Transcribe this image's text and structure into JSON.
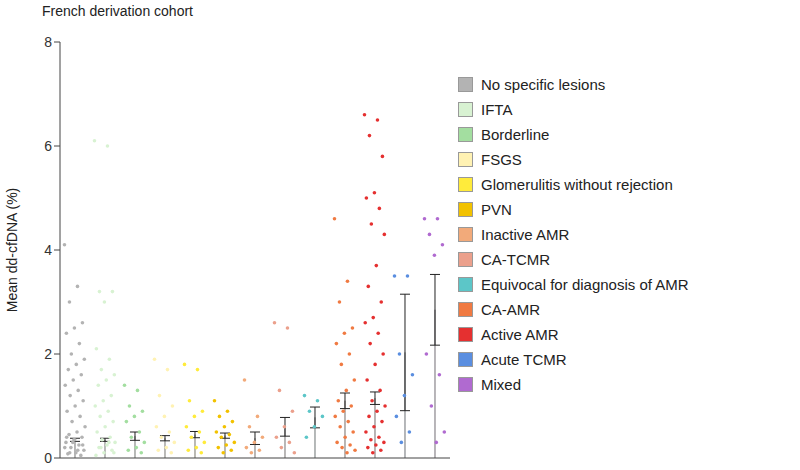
{
  "chart_data": {
    "type": "bar",
    "title": "French derivation cohort",
    "y_label": "Mean dd-cfDNA (%)",
    "categories": [
      "No specific lesions",
      "IFTA",
      "Borderline",
      "FSGS",
      "Glomerulitis without rejection",
      "PVN",
      "Inactive AMR",
      "CA-TCMR",
      "Equivocal for diagnosis of AMR",
      "CA-AMR",
      "Active AMR",
      "Acute TCMR",
      "Mixed"
    ],
    "values": [
      0.35,
      0.35,
      0.42,
      0.38,
      0.45,
      0.43,
      0.38,
      0.6,
      0.78,
      1.1,
      1.15,
      2.03,
      2.85
    ],
    "errors": [
      0.03,
      0.03,
      0.08,
      0.05,
      0.06,
      0.05,
      0.12,
      0.18,
      0.2,
      0.15,
      0.12,
      1.12,
      0.68
    ],
    "colors": [
      "#b3b3b3",
      "#d8f2d2",
      "#a3dea0",
      "#fff2b3",
      "#ffeb3b",
      "#f2c200",
      "#f2aa7a",
      "#eba08c",
      "#5cc6c8",
      "#f07a42",
      "#e53030",
      "#5a8ee0",
      "#b06ad0"
    ],
    "points": [
      [
        4.1,
        3.3,
        3.0,
        2.6,
        2.5,
        2.4,
        2.2,
        2.0,
        1.9,
        1.8,
        1.7,
        1.6,
        1.5,
        1.4,
        1.3,
        1.2,
        1.1,
        1.0,
        0.9,
        0.8,
        0.7,
        0.6,
        0.5,
        0.45,
        0.4,
        0.35,
        0.3,
        0.25,
        0.2,
        0.15,
        0.1,
        0.08,
        0.05,
        0.3,
        0.2,
        0.15,
        0.1,
        0.25,
        0.35,
        0.4
      ],
      [
        6.1,
        6.0,
        3.2,
        3.2,
        3.0,
        2.1,
        1.9,
        1.7,
        1.6,
        1.5,
        1.4,
        1.2,
        1.1,
        1.0,
        0.9,
        0.8,
        0.7,
        0.6,
        0.5,
        0.4,
        0.35,
        0.3,
        0.25,
        0.2,
        0.15,
        0.1,
        0.05,
        0.3,
        0.2,
        0.1
      ],
      [
        1.4,
        1.3,
        1.0,
        0.9,
        0.8,
        0.7,
        0.5,
        0.4,
        0.3,
        0.2,
        0.15,
        0.1
      ],
      [
        1.9,
        1.7,
        1.2,
        1.0,
        0.8,
        0.6,
        0.5,
        0.4,
        0.3,
        0.2,
        0.15,
        0.1
      ],
      [
        1.8,
        1.7,
        1.1,
        0.9,
        0.8,
        0.6,
        0.5,
        0.4,
        0.3,
        0.2,
        0.15,
        0.1
      ],
      [
        1.1,
        0.9,
        0.8,
        0.7,
        0.6,
        0.5,
        0.45,
        0.4,
        0.3,
        0.25,
        0.2,
        0.15,
        0.1
      ],
      [
        1.5,
        0.8,
        0.6,
        0.4,
        0.3,
        0.2,
        0.15,
        0.1
      ],
      [
        2.6,
        2.5,
        1.3,
        0.9,
        0.6,
        0.4,
        0.3,
        0.2,
        0.1
      ],
      [
        1.2,
        1.1,
        0.9,
        0.8,
        0.6,
        0.4
      ],
      [
        4.6,
        3.4,
        3.0,
        2.5,
        2.4,
        2.2,
        2.0,
        1.8,
        1.5,
        1.3,
        1.1,
        1.0,
        0.9,
        0.8,
        0.7,
        0.6,
        0.5,
        0.4,
        0.3,
        0.25,
        0.2,
        0.15,
        0.1
      ],
      [
        6.6,
        6.5,
        6.2,
        5.8,
        5.1,
        5.0,
        4.8,
        4.5,
        4.3,
        3.7,
        3.3,
        3.0,
        2.7,
        2.6,
        2.4,
        2.2,
        2.0,
        1.8,
        1.5,
        1.3,
        1.1,
        1.0,
        0.9,
        0.8,
        0.7,
        0.6,
        0.5,
        0.4,
        0.35,
        0.3,
        0.25,
        0.2,
        0.15,
        0.1
      ],
      [
        3.5,
        3.5,
        2.0,
        1.6,
        1.2,
        0.8,
        0.5,
        0.3
      ],
      [
        4.6,
        4.6,
        4.3,
        4.1,
        3.9,
        2.0,
        1.6,
        1.0,
        0.5,
        0.3
      ]
    ],
    "ylim": [
      0,
      8
    ],
    "yticks": [
      0,
      2,
      4,
      6,
      8
    ],
    "tick_labels": "y",
    "legend": "right"
  }
}
